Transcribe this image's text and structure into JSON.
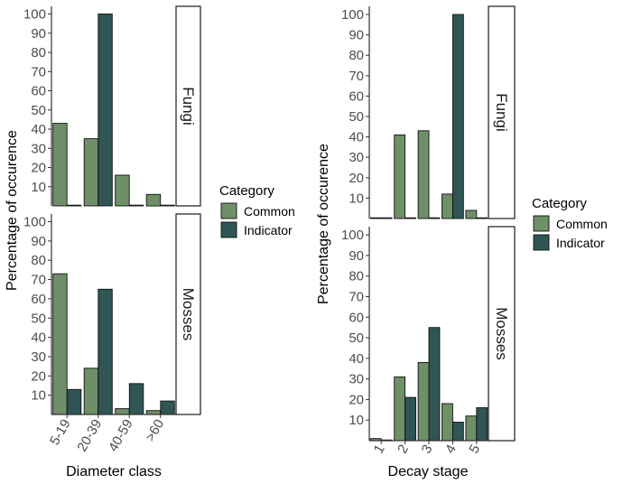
{
  "chart_data": [
    {
      "type": "bar",
      "xlabel": "Diameter class",
      "ylabel": "Percentage of occurence",
      "categories": [
        "5-19",
        "20-39",
        "40-59",
        ">60"
      ],
      "ylim": [
        0,
        104
      ],
      "yticks": [
        10,
        20,
        30,
        40,
        50,
        60,
        70,
        80,
        90,
        100
      ],
      "legend": {
        "title": "Category",
        "entries": [
          "Common",
          "Indicator"
        ]
      },
      "colors": {
        "Common": "#6e8f68",
        "Indicator": "#2f5554"
      },
      "panels": [
        {
          "strip": "Fungi",
          "series": [
            {
              "name": "Common",
              "values": [
                43,
                35,
                16,
                6
              ]
            },
            {
              "name": "Indicator",
              "values": [
                0,
                100,
                0,
                0
              ]
            }
          ]
        },
        {
          "strip": "Mosses",
          "series": [
            {
              "name": "Common",
              "values": [
                73,
                24,
                3,
                2
              ]
            },
            {
              "name": "Indicator",
              "values": [
                13,
                65,
                16,
                7
              ]
            }
          ]
        }
      ]
    },
    {
      "type": "bar",
      "xlabel": "Decay stage",
      "ylabel": "Percentage of occurence",
      "categories": [
        "1",
        "2",
        "3",
        "4",
        "5"
      ],
      "ylim": [
        0,
        104
      ],
      "yticks": [
        10,
        20,
        30,
        40,
        50,
        60,
        70,
        80,
        90,
        100
      ],
      "legend": {
        "title": "Category",
        "entries": [
          "Common",
          "Indicator"
        ]
      },
      "colors": {
        "Common": "#6e8f68",
        "Indicator": "#2f5554"
      },
      "panels": [
        {
          "strip": "Fungi",
          "series": [
            {
              "name": "Common",
              "values": [
                0,
                41,
                43,
                12,
                4
              ]
            },
            {
              "name": "Indicator",
              "values": [
                0,
                0,
                0,
                100,
                0
              ]
            }
          ]
        },
        {
          "strip": "Mosses",
          "series": [
            {
              "name": "Common",
              "values": [
                1,
                31,
                38,
                18,
                12
              ]
            },
            {
              "name": "Indicator",
              "values": [
                0,
                21,
                55,
                9,
                16
              ]
            }
          ]
        }
      ]
    }
  ]
}
